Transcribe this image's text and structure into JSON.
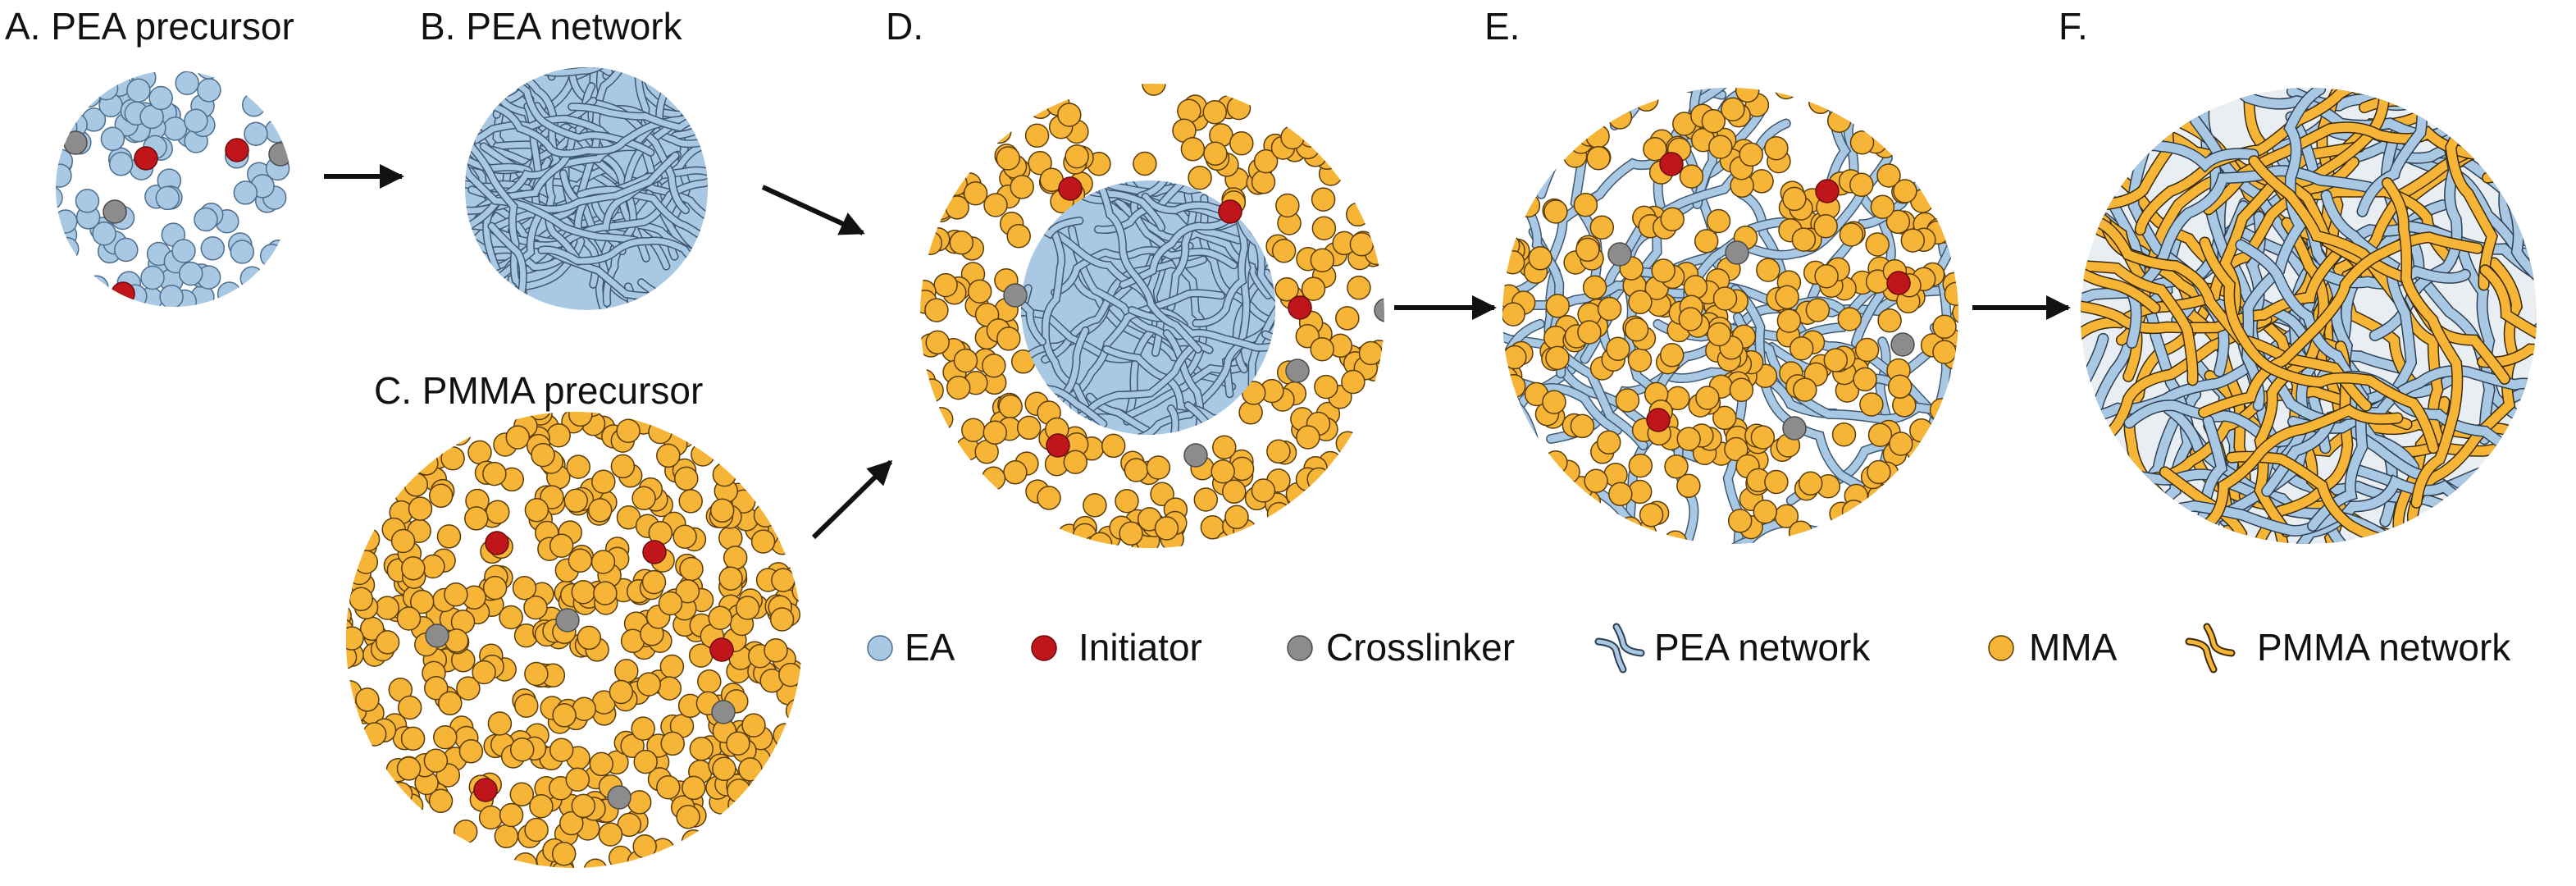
{
  "colors": {
    "ea": "#a9c8e4",
    "ea_stroke": "#4d6e8c",
    "mma": "#f7b537",
    "mma_stroke": "#5a3c08",
    "initiator": "#c0161b",
    "crosslinker": "#8c8c8c",
    "arrow": "#111111"
  },
  "panels": {
    "a": {
      "label": "A. PEA precursor",
      "content": "ea-monomers"
    },
    "b": {
      "label": "B. PEA network",
      "content": "pea-network"
    },
    "c": {
      "label": "C. PMMA precursor",
      "content": "mma-monomers"
    },
    "d": {
      "label": "D.",
      "content": "pea-network-swollen-with-mma"
    },
    "e": {
      "label": "E.",
      "content": "mma-polymerizing-in-pea"
    },
    "f": {
      "label": "F.",
      "content": "interpenetrating-network"
    }
  },
  "legend": [
    {
      "label": "EA",
      "icon": "ea-monomer-icon"
    },
    {
      "label": "Initiator",
      "icon": "initiator-icon"
    },
    {
      "label": "Crosslinker",
      "icon": "crosslinker-icon"
    },
    {
      "label": "PEA network",
      "icon": "pea-network-icon"
    },
    {
      "label": "MMA",
      "icon": "mma-monomer-icon"
    },
    {
      "label": "PMMA network",
      "icon": "pmma-network-icon"
    }
  ]
}
